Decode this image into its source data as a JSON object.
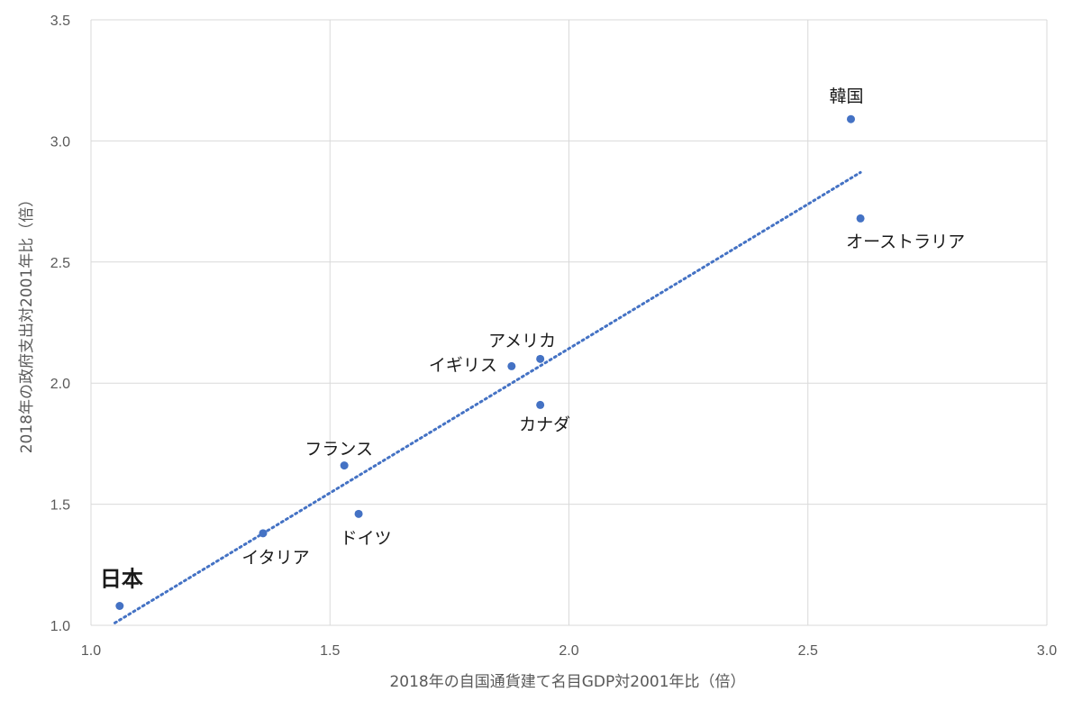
{
  "chart_data": {
    "type": "scatter",
    "title": "",
    "xlabel": "2018年の自国通貨建て名目GDP対2001年比（倍）",
    "ylabel": "2018年の政府支出対2001年比（倍）",
    "xlim": [
      1.0,
      3.0
    ],
    "ylim": [
      1.0,
      3.5
    ],
    "x_ticks": [
      "1.0",
      "1.5",
      "2.0",
      "2.5",
      "3.0"
    ],
    "y_ticks": [
      "1.0",
      "1.5",
      "2.0",
      "2.5",
      "3.0",
      "3.5"
    ],
    "grid": true,
    "legend": "none",
    "point_color": "#4472c4",
    "highlight_color": "#e00000",
    "points": [
      {
        "label": "日本",
        "x": 1.06,
        "y": 1.08,
        "highlight": true
      },
      {
        "label": "イタリア",
        "x": 1.36,
        "y": 1.38
      },
      {
        "label": "フランス",
        "x": 1.53,
        "y": 1.66
      },
      {
        "label": "ドイツ",
        "x": 1.56,
        "y": 1.46
      },
      {
        "label": "イギリス",
        "x": 1.88,
        "y": 2.07
      },
      {
        "label": "アメリカ",
        "x": 1.94,
        "y": 2.1
      },
      {
        "label": "カナダ",
        "x": 1.94,
        "y": 1.91
      },
      {
        "label": "韓国",
        "x": 2.59,
        "y": 3.09
      },
      {
        "label": "オーストラリア",
        "x": 2.61,
        "y": 2.68
      }
    ],
    "trendline": {
      "type": "linear",
      "style": "dotted",
      "x_range": [
        1.05,
        2.61
      ],
      "y_range": [
        1.01,
        2.87
      ]
    }
  }
}
